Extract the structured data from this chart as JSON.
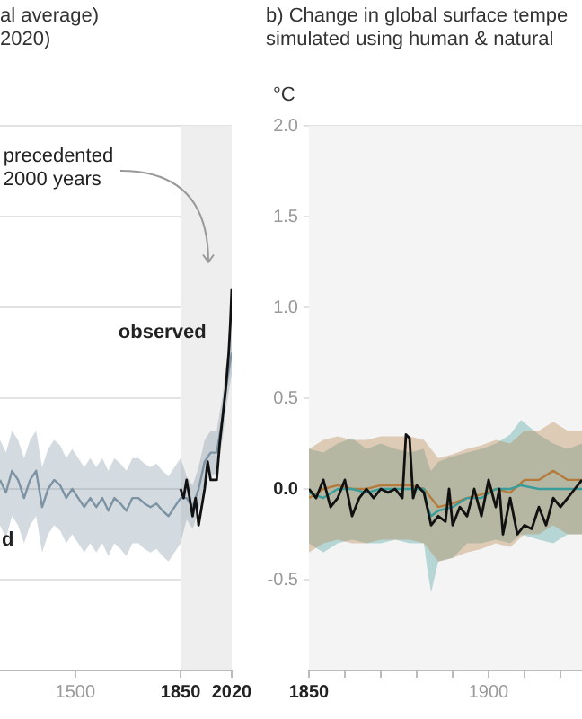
{
  "chart_data": [
    {
      "type": "line",
      "title": "al average)",
      "subtitle": "2020)",
      "xlim": [
        1250,
        2020
      ],
      "xticks": [
        1500,
        1850,
        2020
      ],
      "ylim": [
        -1,
        2
      ],
      "yticks": [
        -0.5,
        0,
        0.5,
        1,
        1.5,
        2
      ],
      "tick_labels": "x",
      "grid": "y",
      "marker": "none",
      "bands": [
        {
          "axis": "x",
          "from": 1850,
          "to": 2020,
          "color": "#eeeeee"
        }
      ],
      "annotations": [
        "precedented 2000 years",
        "observed",
        "d"
      ],
      "series": [
        {
          "color": "#7d93a3",
          "x": [
            1250,
            1270,
            1290,
            1310,
            1330,
            1350,
            1370,
            1390,
            1410,
            1430,
            1450,
            1470,
            1490,
            1510,
            1530,
            1550,
            1570,
            1590,
            1610,
            1630,
            1650,
            1670,
            1690,
            1710,
            1730,
            1750,
            1770,
            1790,
            1810,
            1830,
            1850,
            1870,
            1890,
            1910,
            1930,
            1950,
            1970,
            1990,
            2000,
            2010,
            2020
          ],
          "values": [
            0.05,
            -0.02,
            0.1,
            0.05,
            -0.05,
            0.05,
            0.1,
            -0.1,
            0.0,
            0.05,
            0.02,
            -0.05,
            0.0,
            -0.05,
            -0.1,
            -0.05,
            -0.1,
            -0.05,
            -0.12,
            -0.05,
            -0.08,
            -0.12,
            -0.05,
            -0.05,
            -0.08,
            -0.1,
            -0.08,
            -0.12,
            -0.15,
            -0.1,
            -0.05,
            -0.05,
            -0.1,
            0.0,
            0.15,
            0.2,
            0.2,
            0.4,
            0.55,
            0.65,
            0.75
          ],
          "lower": [
            -0.2,
            -0.27,
            -0.15,
            -0.2,
            -0.3,
            -0.2,
            -0.15,
            -0.35,
            -0.25,
            -0.2,
            -0.23,
            -0.3,
            -0.25,
            -0.3,
            -0.35,
            -0.3,
            -0.35,
            -0.3,
            -0.37,
            -0.3,
            -0.33,
            -0.37,
            -0.3,
            -0.3,
            -0.33,
            -0.35,
            -0.33,
            -0.37,
            -0.4,
            -0.35,
            -0.3,
            -0.17,
            -0.22,
            -0.12,
            0.03,
            0.08,
            0.08,
            0.28,
            0.43,
            0.53,
            0.63
          ],
          "upper": [
            0.27,
            0.2,
            0.32,
            0.27,
            0.17,
            0.27,
            0.32,
            0.12,
            0.22,
            0.27,
            0.24,
            0.17,
            0.22,
            0.17,
            0.12,
            0.17,
            0.12,
            0.17,
            0.1,
            0.17,
            0.14,
            0.1,
            0.17,
            0.17,
            0.14,
            0.12,
            0.14,
            0.1,
            0.07,
            0.12,
            0.17,
            0.07,
            0.02,
            0.12,
            0.27,
            0.32,
            0.32,
            0.52,
            0.67,
            0.77,
            0.87
          ]
        },
        {
          "color": "#111111",
          "x": [
            1850,
            1860,
            1870,
            1880,
            1890,
            1900,
            1910,
            1920,
            1930,
            1940,
            1950,
            1960,
            1970,
            1980,
            1990,
            2000,
            2010,
            2015,
            2020
          ],
          "values": [
            0.0,
            -0.05,
            0.05,
            -0.05,
            -0.15,
            -0.05,
            -0.2,
            -0.1,
            0.0,
            0.15,
            0.05,
            0.05,
            0.05,
            0.25,
            0.4,
            0.55,
            0.75,
            0.9,
            1.1
          ]
        }
      ]
    },
    {
      "type": "line",
      "title": "b) Change in global surface tempe",
      "subtitle": "simulated using human & natural",
      "ylabel": "°C",
      "xlim": [
        1850,
        1926
      ],
      "xticks": [
        1850,
        {
          "value": 1860,
          "label": null
        },
        {
          "value": 1870,
          "label": null
        },
        {
          "value": 1880,
          "label": null
        },
        {
          "value": 1890,
          "label": null
        },
        1900,
        {
          "value": 1910,
          "label": null
        },
        {
          "value": 1920,
          "label": null
        }
      ],
      "ylim": [
        -1,
        2
      ],
      "yticks": [
        {
          "value": -0.5,
          "label": "-0.5"
        },
        {
          "value": 0,
          "label": "0.0"
        },
        {
          "value": 0.5,
          "label": "0.5"
        },
        {
          "value": 1,
          "label": "1.0"
        },
        {
          "value": 1.5,
          "label": "1.5"
        },
        {
          "value": 2,
          "label": "2.0"
        }
      ],
      "grid": "y",
      "marker": "none",
      "series": [
        {
          "color": "#b47b3c",
          "x": [
            1850,
            1854,
            1858,
            1862,
            1866,
            1870,
            1874,
            1878,
            1882,
            1886,
            1890,
            1894,
            1898,
            1902,
            1906,
            1910,
            1914,
            1918,
            1922,
            1926
          ],
          "values": [
            -0.05,
            0.0,
            0.02,
            0.0,
            0.0,
            0.02,
            0.02,
            0.02,
            0.0,
            -0.1,
            -0.08,
            -0.05,
            -0.03,
            0.0,
            -0.02,
            0.05,
            0.05,
            0.1,
            0.05,
            0.05
          ],
          "lower": [
            -0.35,
            -0.3,
            -0.28,
            -0.3,
            -0.3,
            -0.28,
            -0.28,
            -0.28,
            -0.3,
            -0.4,
            -0.38,
            -0.35,
            -0.33,
            -0.3,
            -0.32,
            -0.25,
            -0.25,
            -0.2,
            -0.25,
            -0.25
          ],
          "upper": [
            0.22,
            0.27,
            0.29,
            0.27,
            0.27,
            0.29,
            0.29,
            0.29,
            0.27,
            0.17,
            0.19,
            0.22,
            0.24,
            0.27,
            0.25,
            0.32,
            0.32,
            0.37,
            0.32,
            0.32
          ]
        },
        {
          "color": "#3b9c9c",
          "x": [
            1850,
            1854,
            1858,
            1862,
            1866,
            1870,
            1874,
            1878,
            1882,
            1883,
            1884,
            1886,
            1890,
            1894,
            1898,
            1902,
            1906,
            1909,
            1914,
            1918,
            1922,
            1926
          ],
          "values": [
            -0.02,
            -0.05,
            0.0,
            0.0,
            -0.02,
            0.0,
            0.0,
            0.0,
            0.0,
            -0.1,
            -0.15,
            -0.12,
            -0.1,
            -0.05,
            -0.05,
            0.0,
            0.0,
            0.02,
            0.0,
            0.0,
            0.0,
            0.0
          ],
          "lower": [
            -0.3,
            -0.35,
            -0.3,
            -0.28,
            -0.3,
            -0.3,
            -0.28,
            -0.3,
            -0.3,
            -0.45,
            -0.57,
            -0.4,
            -0.38,
            -0.3,
            -0.3,
            -0.28,
            -0.3,
            -0.25,
            -0.28,
            -0.3,
            -0.25,
            -0.25
          ],
          "upper": [
            0.22,
            0.2,
            0.25,
            0.28,
            0.22,
            0.25,
            0.22,
            0.2,
            0.22,
            0.15,
            0.1,
            0.15,
            0.18,
            0.2,
            0.22,
            0.25,
            0.3,
            0.38,
            0.3,
            0.25,
            0.22,
            0.25
          ]
        },
        {
          "color": "#111111",
          "x": [
            1850,
            1852,
            1854,
            1856,
            1858,
            1860,
            1862,
            1864,
            1866,
            1868,
            1870,
            1872,
            1874,
            1876,
            1877,
            1878,
            1879,
            1880,
            1882,
            1884,
            1886,
            1888,
            1889,
            1890,
            1892,
            1894,
            1896,
            1898,
            1900,
            1902,
            1903,
            1904,
            1906,
            1908,
            1910,
            1912,
            1914,
            1916,
            1918,
            1920,
            1922,
            1924,
            1926
          ],
          "values": [
            0.0,
            -0.05,
            0.05,
            -0.1,
            -0.05,
            0.05,
            -0.15,
            -0.05,
            0.0,
            -0.05,
            0.0,
            -0.02,
            0.0,
            -0.05,
            0.3,
            0.28,
            -0.05,
            0.02,
            -0.02,
            -0.2,
            -0.15,
            -0.18,
            0.0,
            -0.2,
            -0.1,
            -0.15,
            0.0,
            -0.15,
            0.05,
            -0.1,
            0.0,
            -0.25,
            -0.05,
            -0.25,
            -0.2,
            -0.22,
            -0.1,
            -0.2,
            -0.05,
            -0.1,
            -0.05,
            0.0,
            0.05
          ]
        }
      ]
    }
  ]
}
